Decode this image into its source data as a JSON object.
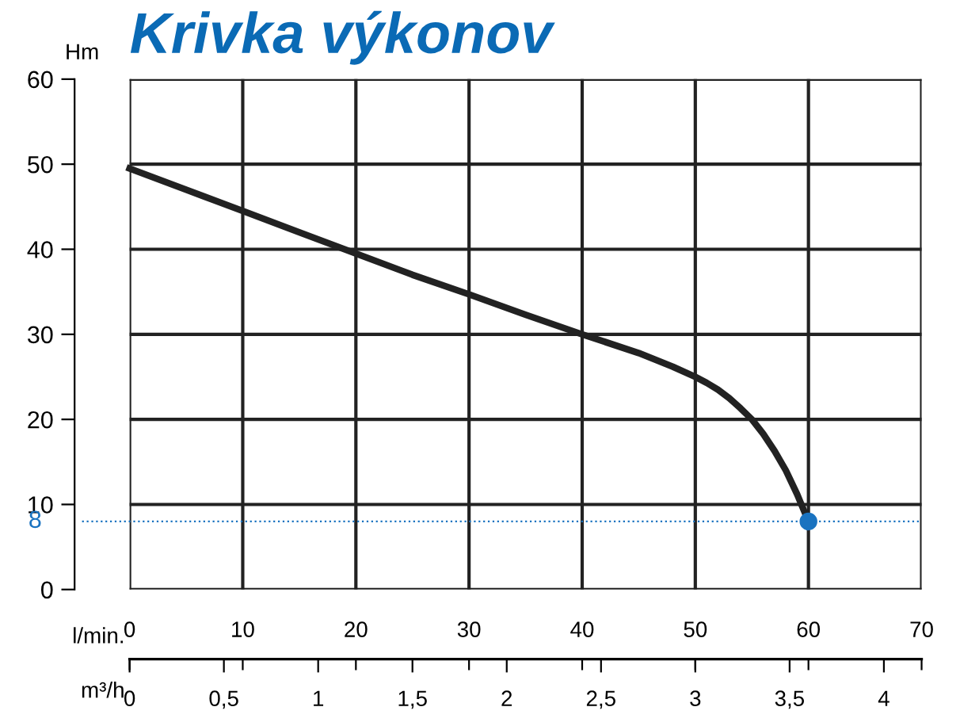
{
  "chart_data": {
    "type": "line",
    "title": "Krivka výkonov",
    "ylabel": "Hm",
    "xlabel": "l/min.",
    "x2label": "m³/h",
    "series": [
      {
        "color": "#222222",
        "x": [
          0,
          5,
          10,
          15,
          20,
          25,
          30,
          35,
          40,
          45,
          48,
          50,
          51,
          52,
          53,
          54,
          55,
          56,
          57,
          58,
          59,
          60
        ],
        "values": [
          49.5,
          47,
          44.5,
          42,
          39.5,
          37,
          34.7,
          32.3,
          30,
          27.8,
          26.2,
          25,
          24.3,
          23.5,
          22.5,
          21.3,
          20,
          18.3,
          16.3,
          14,
          11.2,
          8
        ]
      },
      {
        "type": "scatter",
        "color": "#1a73c0",
        "x": [
          60
        ],
        "values": [
          8
        ],
        "marker": "circle"
      }
    ],
    "xlim": [
      0,
      70
    ],
    "xticks": [
      0,
      10,
      20,
      30,
      40,
      50,
      60,
      70
    ],
    "x2lim": [
      0,
      4.2
    ],
    "x2ticks": [
      0,
      {
        "value": 0.5,
        "label": "0,5"
      },
      1,
      {
        "value": 1.5,
        "label": "1,5"
      },
      2,
      {
        "value": 2.5,
        "label": "2,5"
      },
      3,
      {
        "value": 3.5,
        "label": "3,5"
      },
      4
    ],
    "ylim": [
      0,
      60
    ],
    "yticks": [
      0,
      10,
      20,
      30,
      40,
      50,
      60
    ],
    "ref_lines": [
      {
        "axis": "y",
        "value": 8,
        "label": "8",
        "color": "#1a73c0",
        "line_style": "dotted"
      }
    ],
    "grid": true,
    "legend": false
  }
}
